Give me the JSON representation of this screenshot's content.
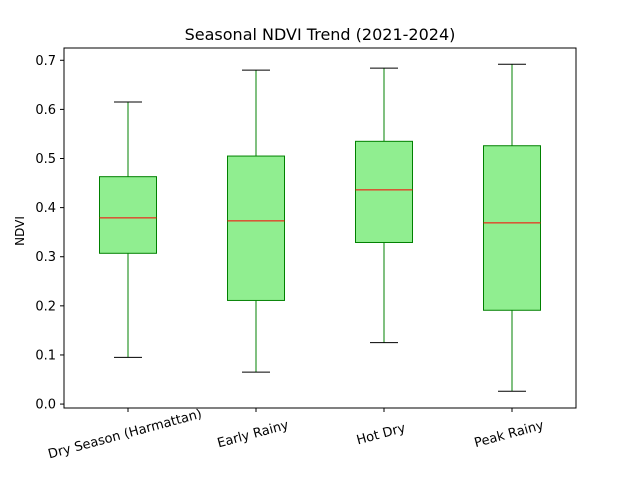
{
  "chart_data": {
    "type": "box",
    "title": "Seasonal NDVI Trend (2021-2024)",
    "xlabel": "",
    "ylabel": "NDVI",
    "ylim": [
      -0.008,
      0.725
    ],
    "yticks": [
      0.0,
      0.1,
      0.2,
      0.3,
      0.4,
      0.5,
      0.6,
      0.7
    ],
    "ytick_labels": [
      "0.0",
      "0.1",
      "0.2",
      "0.3",
      "0.4",
      "0.5",
      "0.6",
      "0.7"
    ],
    "categories": [
      "Dry Season (Harmattan)",
      "Early Rainy",
      "Hot Dry",
      "Peak Rainy"
    ],
    "boxes": [
      {
        "whisker_low": 0.095,
        "q1": 0.307,
        "median": 0.379,
        "q3": 0.463,
        "whisker_high": 0.615
      },
      {
        "whisker_low": 0.065,
        "q1": 0.211,
        "median": 0.373,
        "q3": 0.505,
        "whisker_high": 0.68
      },
      {
        "whisker_low": 0.125,
        "q1": 0.329,
        "median": 0.436,
        "q3": 0.535,
        "whisker_high": 0.684
      },
      {
        "whisker_low": 0.026,
        "q1": 0.191,
        "median": 0.369,
        "q3": 0.526,
        "whisker_high": 0.692
      }
    ],
    "grid": false,
    "colors": {
      "box_fill": "#90ee90",
      "box_edge": "#008000",
      "whisker": "#008000",
      "cap": "#000000",
      "median": "#ff0000"
    }
  }
}
